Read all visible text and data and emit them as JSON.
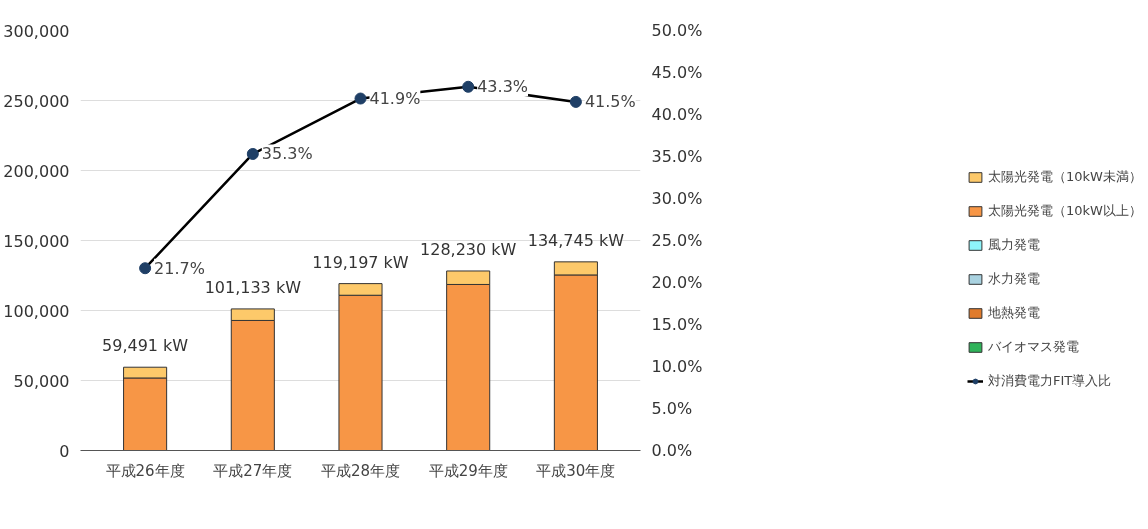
{
  "chart_data": {
    "type": "bar",
    "stacked": true,
    "categories": [
      "平成26年度",
      "平成27年度",
      "平成28年度",
      "平成29年度",
      "平成30年度"
    ],
    "series": [
      {
        "name": "バイオマス発電",
        "color": "#2fb35a",
        "values": [
          0,
          0,
          0,
          0,
          0
        ]
      },
      {
        "name": "地熱発電",
        "color": "#e07b2c",
        "values": [
          0,
          0,
          0,
          0,
          0
        ]
      },
      {
        "name": "水力発電",
        "color": "#a9d2e0",
        "values": [
          0,
          0,
          0,
          0,
          0
        ]
      },
      {
        "name": "風力発電",
        "color": "#8ef5fb",
        "values": [
          0,
          0,
          0,
          0,
          0
        ]
      },
      {
        "name": "太陽光発電（10kW以上）",
        "color": "#f79646",
        "values": [
          51800,
          92900,
          110900,
          118600,
          125400
        ]
      },
      {
        "name": "太陽光発電（10kW未満）",
        "color": "#fdc96a",
        "values": [
          7691,
          8233,
          8297,
          9630,
          9345
        ]
      },
      {
        "name": "対消費電力FIT導入比",
        "type": "line",
        "axis": "y2",
        "color": "#1f3f66",
        "values": [
          21.7,
          35.3,
          41.9,
          43.3,
          41.5
        ],
        "value_labels": [
          "21.7%",
          "35.3%",
          "41.9%",
          "43.3%",
          "41.5%"
        ]
      }
    ],
    "totals": [
      "59,491 kW",
      "101,133 kW",
      "119,197 kW",
      "128,230 kW",
      "134,745 kW"
    ],
    "ylim": [
      0,
      300000
    ],
    "yticks": [
      {
        "value": 0,
        "label": "0"
      },
      {
        "value": 50000,
        "label": "50,000"
      },
      {
        "value": 100000,
        "label": "100,000"
      },
      {
        "value": 150000,
        "label": "150,000"
      },
      {
        "value": 200000,
        "label": "200,000"
      },
      {
        "value": 250000,
        "label": "250,000"
      },
      {
        "value": 300000,
        "label": "300,000"
      }
    ],
    "y2lim": [
      0,
      50
    ],
    "y2ticks": [
      {
        "value": 0,
        "label": "0.0%"
      },
      {
        "value": 5,
        "label": "5.0%"
      },
      {
        "value": 10,
        "label": "10.0%"
      },
      {
        "value": 15,
        "label": "15.0%"
      },
      {
        "value": 20,
        "label": "20.0%"
      },
      {
        "value": 25,
        "label": "25.0%"
      },
      {
        "value": 30,
        "label": "30.0%"
      },
      {
        "value": 35,
        "label": "35.0%"
      },
      {
        "value": 40,
        "label": "40.0%"
      },
      {
        "value": 45,
        "label": "45.0%"
      },
      {
        "value": 50,
        "label": "50.0%"
      }
    ],
    "grid": "y",
    "legend": "right",
    "marker": "circle"
  }
}
